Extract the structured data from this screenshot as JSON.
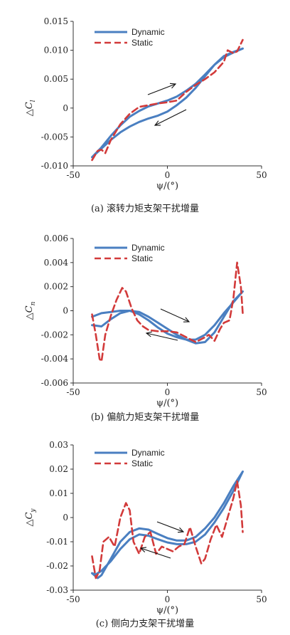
{
  "chart_data": [
    {
      "type": "line",
      "caption": "(a) 滚转力矩支架干扰增量",
      "ylabel_prefix": "△C",
      "ylabel_sub": "l",
      "xlabel": "ψ/(°)",
      "xlim": [
        -50,
        50
      ],
      "ylim": [
        -0.01,
        0.015
      ],
      "xticks": [
        "-50",
        "0",
        "50"
      ],
      "yticks": [
        "0.015",
        "0.010",
        "0.005",
        "0",
        "-0.005",
        "-0.010"
      ],
      "legend": "top-left",
      "series": [
        {
          "name": "Dynamic",
          "color": "#4a7fc1",
          "x": [
            -40,
            -35,
            -30,
            -25,
            -20,
            -15,
            -10,
            -5,
            0,
            5,
            10,
            15,
            20,
            25,
            30,
            35,
            40,
            35,
            30,
            25,
            20,
            15,
            10,
            5,
            0,
            -5,
            -10,
            -15,
            -20,
            -25,
            -30,
            -35,
            -40
          ],
          "y": [
            -0.0085,
            -0.0068,
            -0.0048,
            -0.003,
            -0.0015,
            -0.0005,
            0.0003,
            0.0008,
            0.0013,
            0.002,
            0.003,
            0.0042,
            0.0058,
            0.0075,
            0.0088,
            0.0096,
            0.0103,
            0.0097,
            0.009,
            0.0075,
            0.0055,
            0.0035,
            0.0018,
            0.0005,
            -0.0006,
            -0.0013,
            -0.0018,
            -0.0024,
            -0.0032,
            -0.0042,
            -0.0055,
            -0.007,
            -0.0085
          ]
        },
        {
          "name": "Static",
          "color": "#d23a3a",
          "x": [
            -40,
            -37,
            -35,
            -33,
            -30,
            -25,
            -20,
            -15,
            -10,
            -5,
            0,
            5,
            10,
            15,
            20,
            25,
            30,
            32,
            35,
            37,
            40
          ],
          "y": [
            -0.009,
            -0.0074,
            -0.0072,
            -0.0078,
            -0.0055,
            -0.0028,
            -0.001,
            0.0002,
            0.0005,
            0.0008,
            0.001,
            0.0013,
            0.0028,
            0.004,
            0.005,
            0.0062,
            0.008,
            0.01,
            0.0095,
            0.0098,
            0.0118
          ]
        }
      ]
    },
    {
      "type": "line",
      "caption": "(b) 偏航力矩支架干扰增量",
      "ylabel_prefix": "△C",
      "ylabel_sub": "n",
      "xlabel": "ψ/(°)",
      "xlim": [
        -50,
        50
      ],
      "ylim": [
        -0.006,
        0.006
      ],
      "xticks": [
        "-50",
        "0",
        "50"
      ],
      "yticks": [
        "0.006",
        "0.004",
        "0.002",
        "0",
        "-0.002",
        "-0.004",
        "-0.006"
      ],
      "legend": "top-left",
      "series": [
        {
          "name": "Dynamic",
          "color": "#4a7fc1",
          "x": [
            -40,
            -35,
            -30,
            -25,
            -20,
            -15,
            -10,
            -5,
            0,
            5,
            10,
            15,
            20,
            25,
            30,
            35,
            40,
            35,
            30,
            25,
            20,
            15,
            10,
            5,
            0,
            -5,
            -10,
            -15,
            -20,
            -25,
            -30,
            -35,
            -40
          ],
          "y": [
            -0.0005,
            -0.0002,
            -0.0001,
            0.0,
            0.0,
            -0.0003,
            -0.0008,
            -0.0014,
            -0.0019,
            -0.0022,
            -0.0024,
            -0.0024,
            -0.002,
            -0.0012,
            -0.0002,
            0.0007,
            0.0016,
            0.0008,
            -0.0005,
            -0.0018,
            -0.0026,
            -0.0027,
            -0.0024,
            -0.002,
            -0.0015,
            -0.001,
            -0.0005,
            -0.0001,
            0.0,
            -0.0002,
            -0.0007,
            -0.0013,
            -0.0012
          ]
        },
        {
          "name": "Static",
          "color": "#d23a3a",
          "x": [
            -40,
            -38,
            -36,
            -35,
            -33,
            -30,
            -27,
            -24,
            -22,
            -19,
            -16,
            -13,
            -10,
            -5,
            0,
            5,
            10,
            15,
            20,
            22,
            25,
            28,
            30,
            33,
            35,
            37,
            39,
            40
          ],
          "y": [
            -0.0003,
            -0.002,
            -0.004,
            -0.0042,
            -0.002,
            -0.0004,
            0.0009,
            0.0019,
            0.0016,
            0.0002,
            -0.0008,
            -0.0013,
            -0.0016,
            -0.0017,
            -0.0017,
            -0.0018,
            -0.0022,
            -0.0026,
            -0.0022,
            -0.002,
            -0.0025,
            -0.0015,
            -0.001,
            -0.0008,
            0.001,
            0.004,
            0.002,
            -0.0002
          ]
        }
      ]
    },
    {
      "type": "line",
      "caption": "(c) 侧向力支架干扰增量",
      "ylabel_prefix": "△C",
      "ylabel_sub": "y",
      "xlabel": "ψ/(°)",
      "xlim": [
        -50,
        50
      ],
      "ylim": [
        -0.03,
        0.03
      ],
      "xticks": [
        "-50",
        "0",
        "50"
      ],
      "yticks": [
        "0.03",
        "0.02",
        "0.01",
        "0",
        "-0.01",
        "-0.02",
        "-0.03"
      ],
      "legend": "top-left",
      "series": [
        {
          "name": "Dynamic",
          "color": "#4a7fc1",
          "x": [
            -40,
            -37,
            -35,
            -30,
            -25,
            -20,
            -15,
            -10,
            -5,
            0,
            5,
            10,
            15,
            20,
            25,
            30,
            35,
            40,
            35,
            30,
            25,
            20,
            15,
            10,
            5,
            0,
            -5,
            -10,
            -15,
            -20,
            -25,
            -30,
            -35,
            -38,
            -40
          ],
          "y": [
            -0.023,
            -0.025,
            -0.0238,
            -0.017,
            -0.01,
            -0.006,
            -0.0045,
            -0.005,
            -0.0068,
            -0.0085,
            -0.0095,
            -0.0095,
            -0.008,
            -0.0045,
            0.0,
            0.006,
            0.013,
            0.019,
            0.011,
            0.004,
            -0.002,
            -0.007,
            -0.01,
            -0.011,
            -0.011,
            -0.0103,
            -0.009,
            -0.0075,
            -0.007,
            -0.009,
            -0.013,
            -0.018,
            -0.022,
            -0.0235,
            -0.023
          ]
        },
        {
          "name": "Static",
          "color": "#d23a3a",
          "x": [
            -40,
            -38,
            -36,
            -34,
            -31,
            -28,
            -25,
            -22,
            -20,
            -18,
            -15,
            -12,
            -9,
            -6,
            -3,
            0,
            3,
            6,
            9,
            12,
            15,
            18,
            20,
            23,
            26,
            29,
            32,
            35,
            37,
            39,
            40
          ],
          "y": [
            -0.016,
            -0.025,
            -0.022,
            -0.01,
            -0.008,
            -0.012,
            0.0,
            0.006,
            0.003,
            -0.01,
            -0.015,
            -0.008,
            -0.006,
            -0.015,
            -0.012,
            -0.013,
            -0.014,
            -0.012,
            -0.011,
            -0.004,
            -0.012,
            -0.019,
            -0.017,
            -0.009,
            -0.003,
            -0.008,
            0.0,
            0.008,
            0.015,
            0.005,
            -0.006
          ]
        }
      ]
    }
  ]
}
